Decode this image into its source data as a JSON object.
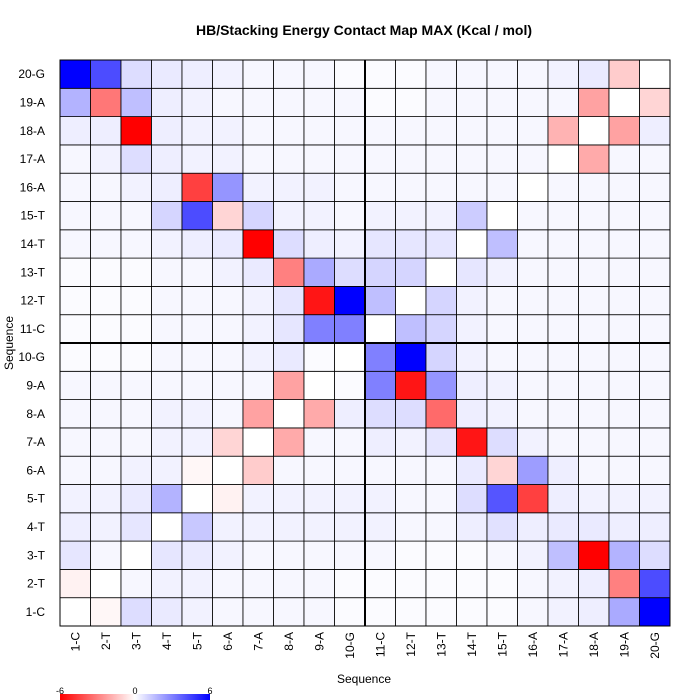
{
  "chart_data": {
    "type": "heatmap",
    "title": "HB/Stacking Energy Contact Map MAX (Kcal / mol)",
    "xlabel": "Sequence",
    "ylabel": "Sequence",
    "labels": [
      "1-C",
      "2-T",
      "3-T",
      "4-T",
      "5-T",
      "6-A",
      "7-A",
      "8-A",
      "9-A",
      "10-G",
      "11-C",
      "12-T",
      "13-T",
      "14-T",
      "15-T",
      "16-A",
      "17-A",
      "18-A",
      "19-A",
      "20-G"
    ],
    "color_scale": {
      "min": -6,
      "mid": 0,
      "max": 6,
      "min_color": "#ff0000",
      "mid_color": "#ffffff",
      "max_color": "#0000ff"
    },
    "colorbar_ticks": [
      "-6",
      "0",
      "6"
    ],
    "grid": true,
    "values": [
      [
        0.0,
        -0.2,
        0.8,
        0.5,
        0.3,
        0.2,
        0.2,
        0.2,
        0.2,
        0.1,
        0.1,
        0.1,
        0.1,
        0.1,
        0.1,
        0.2,
        0.3,
        0.4,
        2.0,
        6.0
      ],
      [
        -0.3,
        0.0,
        0.2,
        0.3,
        0.3,
        0.2,
        0.2,
        0.2,
        0.2,
        0.1,
        0.1,
        0.1,
        0.1,
        0.1,
        0.1,
        0.2,
        0.3,
        0.4,
        -3.0,
        4.2
      ],
      [
        0.6,
        0.2,
        0.0,
        0.6,
        0.5,
        0.3,
        0.2,
        0.2,
        0.2,
        0.2,
        0.2,
        0.1,
        0.1,
        0.1,
        0.2,
        0.3,
        1.5,
        -6.0,
        1.8,
        0.8
      ],
      [
        0.4,
        0.3,
        0.6,
        0.0,
        1.3,
        0.3,
        0.3,
        0.3,
        0.3,
        0.3,
        0.3,
        0.2,
        0.2,
        0.4,
        0.7,
        0.4,
        0.5,
        0.5,
        0.4,
        0.4
      ],
      [
        0.3,
        0.3,
        0.5,
        1.8,
        0.0,
        -0.3,
        0.3,
        0.3,
        0.3,
        0.3,
        0.3,
        0.2,
        0.2,
        0.8,
        4.0,
        -4.5,
        0.4,
        0.3,
        0.3,
        0.3
      ],
      [
        0.2,
        0.2,
        0.3,
        0.3,
        -0.2,
        0.0,
        -1.2,
        0.2,
        0.2,
        0.2,
        0.2,
        0.2,
        0.2,
        0.5,
        -1.0,
        2.3,
        0.4,
        0.2,
        0.2,
        0.2
      ],
      [
        0.2,
        0.2,
        0.2,
        0.3,
        0.3,
        -1.0,
        0.0,
        -2.0,
        0.2,
        0.2,
        0.4,
        0.3,
        0.6,
        -5.5,
        0.8,
        0.3,
        0.2,
        0.2,
        0.2,
        0.2
      ],
      [
        0.2,
        0.2,
        0.2,
        0.3,
        0.3,
        0.2,
        -2.2,
        0.0,
        -2.0,
        0.4,
        0.8,
        0.8,
        -3.5,
        0.4,
        0.3,
        0.2,
        0.2,
        0.2,
        0.2,
        0.2
      ],
      [
        0.2,
        0.2,
        0.2,
        0.2,
        0.2,
        0.2,
        0.2,
        -2.2,
        0.0,
        0.1,
        3.0,
        -5.5,
        2.5,
        0.4,
        0.3,
        0.2,
        0.2,
        0.2,
        0.2,
        0.2
      ],
      [
        0.1,
        0.1,
        0.1,
        0.2,
        0.2,
        0.2,
        0.3,
        0.5,
        0.1,
        0.0,
        3.0,
        6.0,
        1.0,
        0.3,
        0.2,
        0.2,
        0.2,
        0.2,
        0.2,
        0.2
      ],
      [
        0.1,
        0.1,
        0.1,
        0.2,
        0.2,
        0.2,
        0.3,
        0.6,
        3.0,
        3.0,
        0.0,
        1.5,
        1.0,
        0.3,
        0.2,
        0.2,
        0.2,
        0.2,
        0.2,
        0.2
      ],
      [
        0.1,
        0.1,
        0.1,
        0.2,
        0.2,
        0.2,
        0.3,
        0.6,
        -5.5,
        6.0,
        1.5,
        0.0,
        1.0,
        0.3,
        0.2,
        0.2,
        0.2,
        0.2,
        0.2,
        0.2
      ],
      [
        0.1,
        0.1,
        0.1,
        0.2,
        0.2,
        0.3,
        0.5,
        -3.0,
        2.0,
        0.8,
        1.0,
        1.0,
        0.0,
        0.6,
        0.3,
        0.2,
        0.2,
        0.2,
        0.2,
        0.2
      ],
      [
        0.2,
        0.2,
        0.2,
        0.3,
        0.4,
        0.5,
        -6.0,
        0.8,
        0.4,
        0.3,
        0.6,
        0.6,
        0.6,
        0.0,
        1.5,
        0.2,
        0.2,
        0.2,
        0.2,
        0.2
      ],
      [
        0.2,
        0.2,
        0.2,
        1.0,
        4.2,
        -1.0,
        1.0,
        0.3,
        0.3,
        0.2,
        0.3,
        0.3,
        0.3,
        1.2,
        0.0,
        0.2,
        0.2,
        0.2,
        0.2,
        0.2
      ],
      [
        0.2,
        0.2,
        0.3,
        0.4,
        -4.5,
        2.5,
        0.3,
        0.3,
        0.3,
        0.2,
        0.2,
        0.2,
        0.2,
        0.2,
        0.2,
        0.0,
        0.2,
        0.2,
        0.2,
        0.2
      ],
      [
        0.2,
        0.3,
        0.8,
        0.4,
        0.3,
        0.3,
        0.2,
        0.2,
        0.2,
        0.2,
        0.2,
        0.2,
        0.2,
        0.2,
        0.2,
        0.2,
        0.0,
        -2.0,
        0.2,
        0.2
      ],
      [
        0.4,
        0.4,
        -6.0,
        0.4,
        0.3,
        0.3,
        0.2,
        0.2,
        0.2,
        0.2,
        0.2,
        0.2,
        0.2,
        0.2,
        0.2,
        0.2,
        -1.8,
        0.0,
        -2.2,
        0.4
      ],
      [
        1.8,
        -3.2,
        1.5,
        0.4,
        0.3,
        0.2,
        0.2,
        0.2,
        0.2,
        0.2,
        0.1,
        0.1,
        0.2,
        0.2,
        0.2,
        0.2,
        0.2,
        -2.2,
        0.0,
        -1.0
      ],
      [
        6.0,
        4.2,
        0.8,
        0.5,
        0.4,
        0.3,
        0.2,
        0.2,
        0.2,
        0.1,
        0.1,
        0.1,
        0.2,
        0.2,
        0.2,
        0.2,
        0.3,
        0.5,
        -1.2,
        0.0
      ]
    ]
  }
}
